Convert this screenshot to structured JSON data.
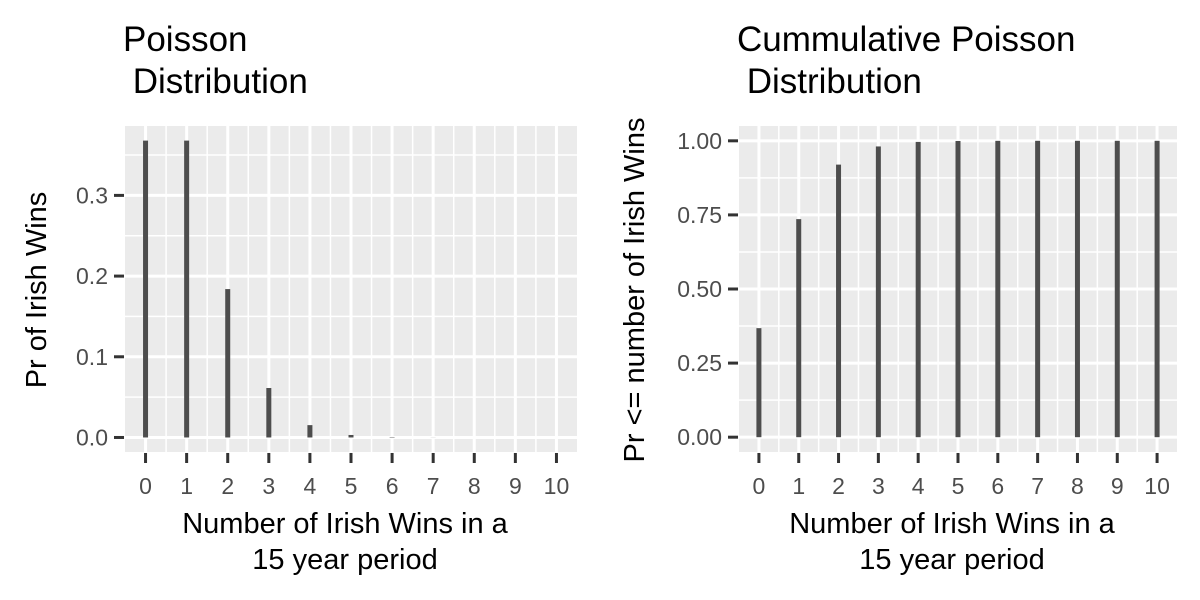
{
  "chart_data": [
    {
      "type": "bar",
      "title": [
        "Poisson",
        " Distribution"
      ],
      "xlabel": [
        "Number of Irish Wins in a",
        "15 year period"
      ],
      "ylabel": "Pr of Irish Wins",
      "categories": [
        "0",
        "1",
        "2",
        "3",
        "4",
        "5",
        "6",
        "7",
        "8",
        "9",
        "10"
      ],
      "x": [
        0,
        1,
        2,
        3,
        4,
        5,
        6,
        7,
        8,
        9,
        10
      ],
      "values": [
        0.3679,
        0.3679,
        0.1839,
        0.0613,
        0.0153,
        0.0031,
        0.0005,
        0.0001,
        0.0,
        0.0,
        0.0
      ],
      "yticks": [
        0.0,
        0.1,
        0.2,
        0.3
      ],
      "ytick_labels": [
        "0.0",
        "0.1",
        "0.2",
        "0.3"
      ],
      "xlim": [
        -0.5,
        10.5
      ],
      "ylim": [
        -0.018,
        0.386
      ],
      "bar_color": "#4d4d4d",
      "panel_background": "#ebebeb",
      "grid": true
    },
    {
      "type": "bar",
      "title": [
        "Cummulative Poisson",
        " Distribution"
      ],
      "xlabel": [
        "Number of Irish Wins in a",
        "15 year period"
      ],
      "ylabel": "Pr <= number of Irish Wins",
      "categories": [
        "0",
        "1",
        "2",
        "3",
        "4",
        "5",
        "6",
        "7",
        "8",
        "9",
        "10"
      ],
      "x": [
        0,
        1,
        2,
        3,
        4,
        5,
        6,
        7,
        8,
        9,
        10
      ],
      "values": [
        0.3679,
        0.7358,
        0.9197,
        0.981,
        0.9963,
        0.9994,
        0.9999,
        1.0,
        1.0,
        1.0,
        1.0
      ],
      "yticks": [
        0.0,
        0.25,
        0.5,
        0.75,
        1.0
      ],
      "ytick_labels": [
        "0.00",
        "0.25",
        "0.50",
        "0.75",
        "1.00"
      ],
      "xlim": [
        -0.5,
        10.5
      ],
      "ylim": [
        -0.05,
        1.05
      ],
      "bar_color": "#4d4d4d",
      "panel_background": "#ebebeb",
      "grid": true
    }
  ]
}
